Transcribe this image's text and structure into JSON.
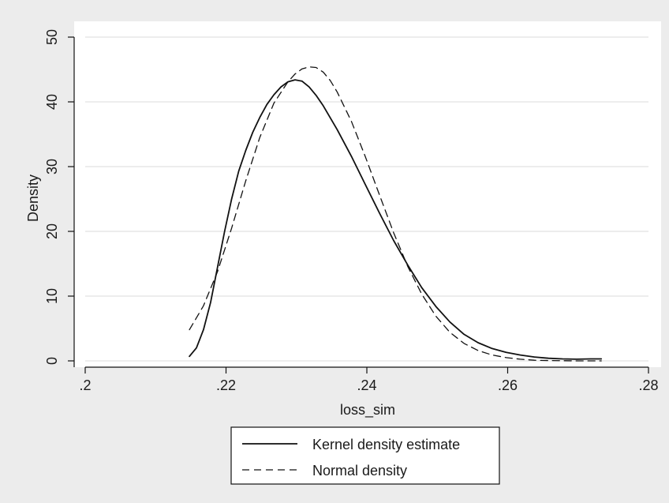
{
  "chart_data": {
    "type": "line",
    "title": "",
    "xlabel": "loss_sim",
    "ylabel": "Density",
    "xlim": [
      0.2,
      0.28
    ],
    "ylim": [
      0,
      50
    ],
    "x_ticks": [
      0.2,
      0.22,
      0.24,
      0.26,
      0.28
    ],
    "x_tick_labels": [
      ".2",
      ".22",
      ".24",
      ".26",
      ".28"
    ],
    "y_ticks": [
      0,
      10,
      20,
      30,
      40,
      50
    ],
    "y_tick_labels": [
      "0",
      "10",
      "20",
      "30",
      "40",
      "50"
    ],
    "grid": "horizontal",
    "legend_position": "bottom",
    "colors": {
      "outer_background": "#ececec",
      "plot_background": "#ffffff",
      "grid": "#e2e2e2",
      "line": "#111111"
    },
    "series": [
      {
        "name": "Kernel density estimate",
        "style": "solid",
        "x": [
          0.2148,
          0.2158,
          0.2168,
          0.2178,
          0.2188,
          0.2198,
          0.2208,
          0.2218,
          0.2228,
          0.2238,
          0.2248,
          0.2258,
          0.2268,
          0.2278,
          0.2288,
          0.2298,
          0.2308,
          0.2318,
          0.2328,
          0.2338,
          0.2358,
          0.2378,
          0.2398,
          0.2418,
          0.2438,
          0.2458,
          0.2478,
          0.2498,
          0.2518,
          0.2538,
          0.2558,
          0.2578,
          0.2598,
          0.2618,
          0.2638,
          0.2658,
          0.2678,
          0.2698,
          0.2718,
          0.2733
        ],
        "y": [
          0.7,
          2.0,
          4.8,
          9.0,
          14.5,
          20.0,
          25.0,
          29.3,
          32.5,
          35.3,
          37.6,
          39.6,
          41.1,
          42.3,
          43.1,
          43.4,
          43.2,
          42.3,
          41.0,
          39.4,
          35.7,
          31.6,
          27.2,
          22.8,
          18.6,
          14.8,
          11.3,
          8.4,
          6.0,
          4.1,
          2.8,
          1.9,
          1.3,
          0.9,
          0.6,
          0.4,
          0.3,
          0.25,
          0.3,
          0.3
        ]
      },
      {
        "name": "Normal density",
        "style": "dashed",
        "x": [
          0.2148,
          0.2168,
          0.2188,
          0.2208,
          0.2228,
          0.2248,
          0.2268,
          0.2288,
          0.2298,
          0.2308,
          0.2318,
          0.2328,
          0.2338,
          0.2348,
          0.2358,
          0.2378,
          0.2398,
          0.2418,
          0.2438,
          0.2458,
          0.2478,
          0.2498,
          0.2518,
          0.2538,
          0.2558,
          0.2578,
          0.2598,
          0.2618,
          0.2638,
          0.2658,
          0.2678,
          0.2698,
          0.2718,
          0.2733
        ],
        "y": [
          4.8,
          8.5,
          13.8,
          20.5,
          27.8,
          34.5,
          39.8,
          43.1,
          44.3,
          45.1,
          45.4,
          45.3,
          44.6,
          43.3,
          41.5,
          37.0,
          31.5,
          25.6,
          19.8,
          14.6,
          10.3,
          6.9,
          4.4,
          2.7,
          1.6,
          0.9,
          0.5,
          0.25,
          0.1,
          0.05,
          0.02,
          0.0,
          0.0,
          0.0
        ]
      }
    ]
  }
}
